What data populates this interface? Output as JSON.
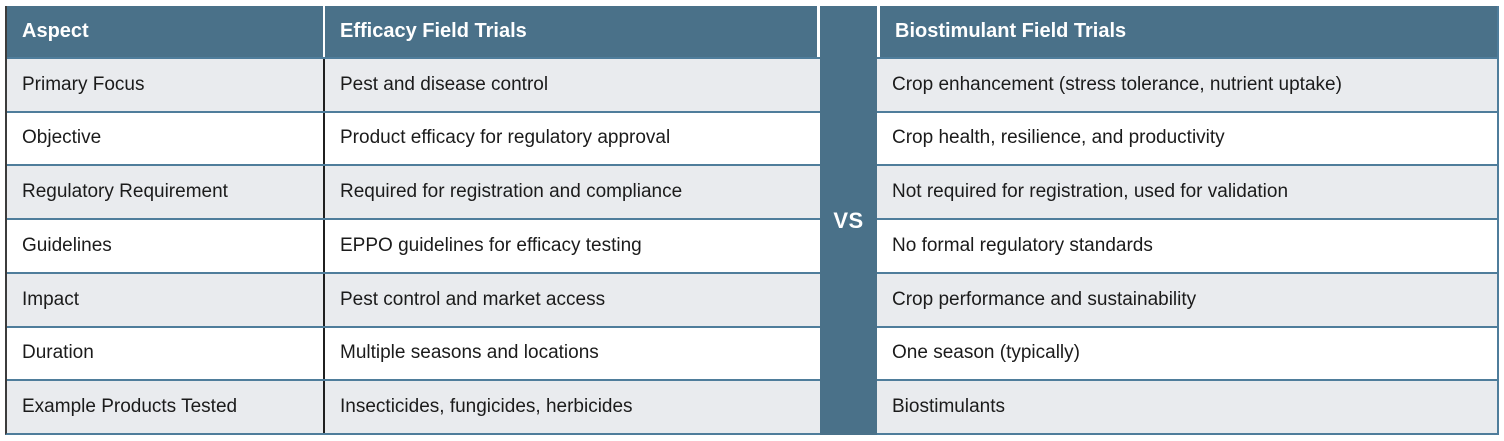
{
  "comparison": {
    "left": {
      "aspect_header": "Aspect",
      "column_header": "Efficacy Field Trials"
    },
    "divider_label": "VS",
    "right": {
      "column_header": "Biostimulant Field Trials"
    },
    "rows": [
      {
        "aspect": "Primary Focus",
        "efficacy": "Pest and disease control",
        "biostimulant": "Crop enhancement (stress tolerance, nutrient uptake)"
      },
      {
        "aspect": "Objective",
        "efficacy": "Product efficacy for regulatory approval",
        "biostimulant": "Crop health, resilience, and productivity"
      },
      {
        "aspect": "Regulatory Requirement",
        "efficacy": "Required for registration and compliance",
        "biostimulant": "Not required for registration, used for validation"
      },
      {
        "aspect": "Guidelines",
        "efficacy": "EPPO guidelines for efficacy testing",
        "biostimulant": "No formal regulatory standards"
      },
      {
        "aspect": "Impact",
        "efficacy": "Pest control and market access",
        "biostimulant": "Crop performance and sustainability"
      },
      {
        "aspect": "Duration",
        "efficacy": "Multiple seasons and locations",
        "biostimulant": "One season (typically)"
      },
      {
        "aspect": "Example Products Tested",
        "efficacy": "Insecticides, fungicides, herbicides",
        "biostimulant": "Biostimulants"
      }
    ],
    "colors": {
      "header_bg": "#4a7189",
      "divider_bg": "#4a7189",
      "row_bg": "#ffffff",
      "row_alt_bg": "#e9ebee",
      "separator": "#4f7d9b",
      "header_text": "#ffffff",
      "body_text": "#1b1b1b",
      "page_bg": "#ffffff"
    }
  }
}
